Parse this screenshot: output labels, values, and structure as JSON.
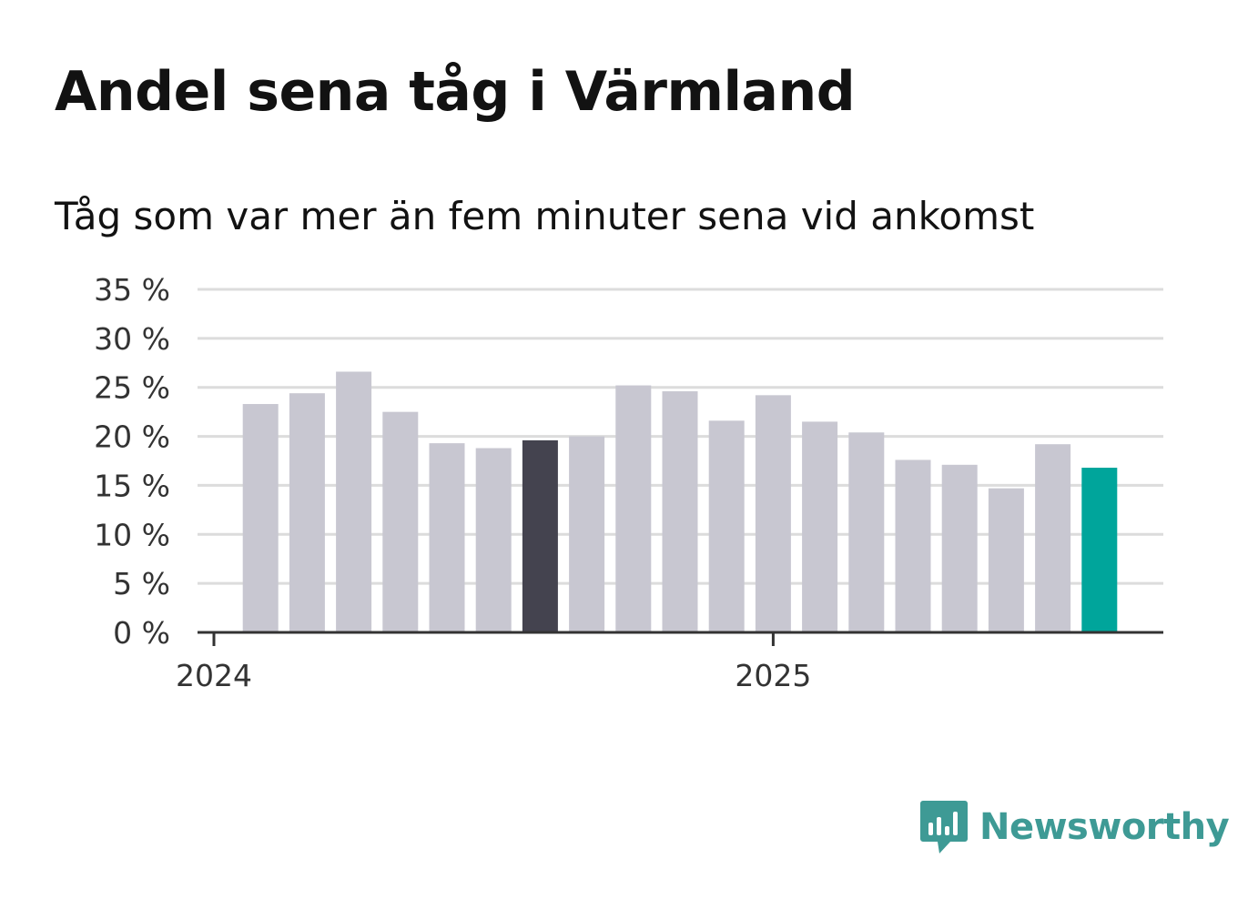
{
  "chart_data": {
    "type": "bar",
    "title": "Andel sena tåg i Värmland",
    "subtitle": "Tåg som var mer än fem minuter sena vid ankomst",
    "x": [
      "2024-02",
      "2024-03",
      "2024-04",
      "2024-05",
      "2024-06",
      "2024-07",
      "2024-08",
      "2024-09",
      "2024-10",
      "2024-11",
      "2024-12",
      "2025-01",
      "2025-02",
      "2025-03",
      "2025-04",
      "2025-05",
      "2025-06",
      "2025-07",
      "2025-08"
    ],
    "values": [
      23.3,
      24.4,
      26.6,
      22.5,
      19.3,
      18.8,
      19.6,
      20.0,
      25.2,
      24.6,
      21.6,
      24.2,
      21.5,
      20.4,
      17.6,
      17.1,
      14.7,
      19.2,
      16.8
    ],
    "highlight": {
      "2024-08": "#44434f",
      "2025-08": "#00a59b"
    },
    "default_color": "#c8c7d1",
    "ylim": [
      0,
      35
    ],
    "yticks": [
      0,
      5,
      10,
      15,
      20,
      25,
      30,
      35
    ],
    "ytick_labels": [
      "0 %",
      "5 %",
      "10 %",
      "15 %",
      "20 %",
      "25 %",
      "30 %",
      "35 %"
    ],
    "xticks": [
      "2024-01",
      "2025-01"
    ],
    "xtick_labels": [
      "2024",
      "2025"
    ],
    "grid": true
  },
  "branding": {
    "logo_text": "Newsworthy",
    "logo_icon": "bar-chart-speech-bubble-icon",
    "color": "#3e9a95"
  }
}
